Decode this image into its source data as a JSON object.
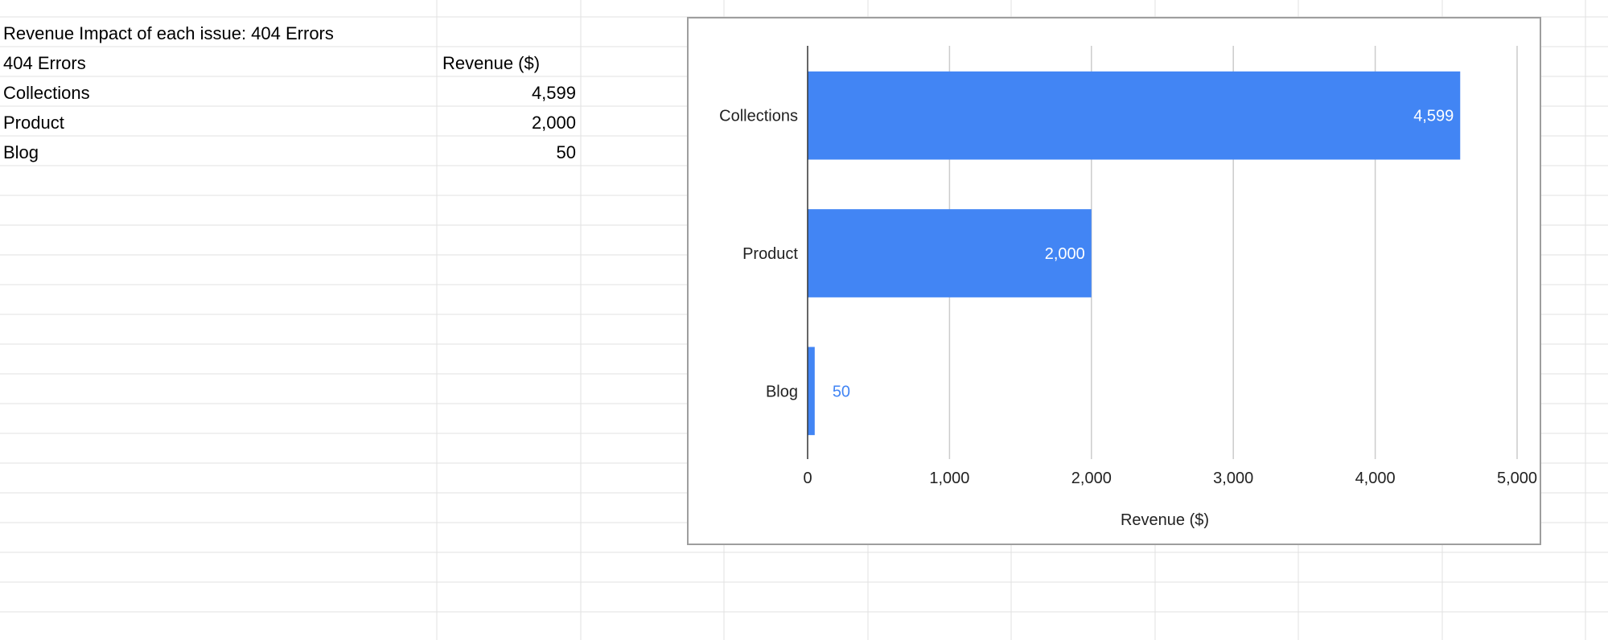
{
  "sheet": {
    "title": "Revenue Impact of each issue: 404 Errors",
    "header": {
      "col_a": "404 Errors",
      "col_b": "Revenue ($)"
    },
    "rows": [
      {
        "label": "Collections",
        "value": "4,599"
      },
      {
        "label": "Product",
        "value": "2,000"
      },
      {
        "label": "Blog",
        "value": "50"
      }
    ]
  },
  "chart_data": {
    "type": "bar",
    "orientation": "horizontal",
    "categories": [
      "Collections",
      "Product",
      "Blog"
    ],
    "values": [
      4599,
      2000,
      50
    ],
    "value_labels": [
      "4,599",
      "2,000",
      "50"
    ],
    "xlabel": "Revenue ($)",
    "ylabel": "",
    "xlim": [
      0,
      5000
    ],
    "xticks": [
      0,
      1000,
      2000,
      3000,
      4000,
      5000
    ],
    "xtick_labels": [
      "0",
      "1,000",
      "2,000",
      "3,000",
      "4,000",
      "5,000"
    ],
    "grid": true,
    "legend": "none",
    "colors": {
      "bar": "#4285f4",
      "label_inside": "#ffffff",
      "label_outside": "#4285f4",
      "grid": "#cccccc",
      "axis": "#333333"
    }
  }
}
